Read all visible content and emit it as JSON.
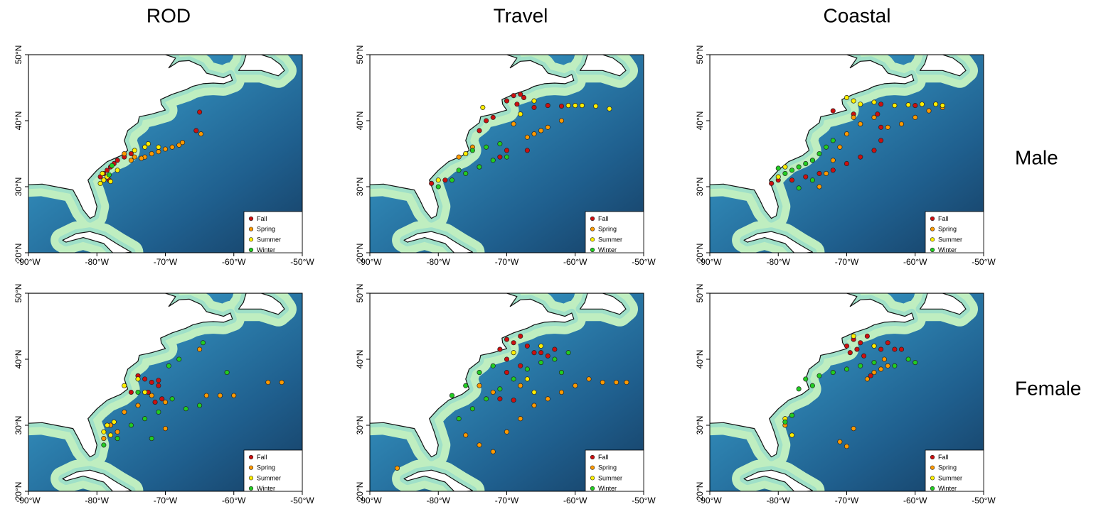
{
  "columns": [
    "ROD",
    "Travel",
    "Coastal"
  ],
  "rows": [
    "Male",
    "Female"
  ],
  "chart_data": [
    {
      "type": "scatter",
      "legend": "bottom-right",
      "xlim": [
        -90,
        -50
      ],
      "ylim": [
        20,
        50
      ],
      "xticks": [
        {
          "value": -90,
          "label": "-90°W"
        },
        {
          "value": -80,
          "label": "-80°W"
        },
        {
          "value": -70,
          "label": "-70°W"
        },
        {
          "value": -60,
          "label": "-60°W"
        },
        {
          "value": -50,
          "label": "-50°W"
        }
      ],
      "yticks": [
        {
          "value": 20,
          "label": "20°N"
        },
        {
          "value": 30,
          "label": "30°N"
        },
        {
          "value": 40,
          "label": "40°N"
        },
        {
          "value": 50,
          "label": "50°N"
        }
      ],
      "series": [
        {
          "name": "Fall",
          "color": "#cc1010",
          "x": [
            -65,
            -65.5,
            -79,
            -78.5,
            -78,
            -77.5,
            -77,
            -76,
            -75,
            -79.5,
            -78.2
          ],
          "y": [
            41.3,
            38.5,
            32,
            32.5,
            33,
            33.5,
            34,
            34.5,
            35,
            31.5,
            31
          ]
        },
        {
          "name": "Spring",
          "color": "#ff9900",
          "x": [
            -73,
            -72,
            -71,
            -70,
            -69,
            -68,
            -67.5,
            -74.5,
            -75,
            -76,
            -64.8,
            -73.5
          ],
          "y": [
            34.5,
            35,
            35.3,
            35.7,
            36,
            36.3,
            36.7,
            34.5,
            34,
            35,
            38,
            34.3
          ]
        },
        {
          "name": "Summer",
          "color": "#ffee00",
          "x": [
            -79.5,
            -79,
            -78.5,
            -78,
            -79.2,
            -73,
            -72.5,
            -71,
            -74.5,
            -77
          ],
          "y": [
            30.5,
            31,
            31.5,
            30.8,
            32,
            36,
            36.5,
            36,
            35.5,
            32.5
          ]
        },
        {
          "name": "Winter",
          "color": "#22cc22",
          "x": [
            -78.2,
            -77.8
          ],
          "y": [
            31.8,
            33.2
          ]
        }
      ]
    },
    {
      "type": "scatter",
      "legend": "bottom-right",
      "xlim": [
        -90,
        -50
      ],
      "ylim": [
        20,
        50
      ],
      "xticks": [
        {
          "value": -90,
          "label": "-90°W"
        },
        {
          "value": -80,
          "label": "-80°W"
        },
        {
          "value": -70,
          "label": "-70°W"
        },
        {
          "value": -60,
          "label": "-60°W"
        },
        {
          "value": -50,
          "label": "-50°W"
        }
      ],
      "yticks": [
        {
          "value": 20,
          "label": "20°N"
        },
        {
          "value": 30,
          "label": "30°N"
        },
        {
          "value": 40,
          "label": "40°N"
        },
        {
          "value": 50,
          "label": "50°N"
        }
      ],
      "series": [
        {
          "name": "Fall",
          "color": "#cc1010",
          "x": [
            -70,
            -69,
            -68,
            -67.5,
            -68.5,
            -66,
            -64,
            -62,
            -73,
            -72,
            -74,
            -71,
            -79,
            -81,
            -70,
            -67
          ],
          "y": [
            43,
            43.8,
            44,
            43.5,
            42.5,
            42,
            42.3,
            42.2,
            40,
            40.5,
            38.5,
            34.5,
            31,
            30.5,
            35.5,
            35.5
          ]
        },
        {
          "name": "Spring",
          "color": "#ff9900",
          "x": [
            -66,
            -64,
            -62,
            -67,
            -65,
            -69,
            -75,
            -76,
            -77,
            -74
          ],
          "y": [
            38,
            39,
            40,
            37.5,
            38.5,
            39.5,
            36,
            35,
            34.5,
            33
          ]
        },
        {
          "name": "Summer",
          "color": "#ffee00",
          "x": [
            -61,
            -59,
            -57,
            -55,
            -60,
            -66,
            -68,
            -73.5,
            -76,
            -80
          ],
          "y": [
            42.3,
            42.3,
            42.2,
            41.8,
            42.3,
            43,
            41,
            42,
            35,
            31
          ]
        },
        {
          "name": "Winter",
          "color": "#22cc22",
          "x": [
            -80,
            -78,
            -76,
            -74,
            -72,
            -70,
            -73,
            -71,
            -77,
            -75
          ],
          "y": [
            30,
            31,
            32,
            33,
            34,
            34.5,
            36,
            36.5,
            32.5,
            35.5
          ]
        }
      ]
    },
    {
      "type": "scatter",
      "legend": "bottom-right",
      "xlim": [
        -90,
        -50
      ],
      "ylim": [
        20,
        50
      ],
      "xticks": [
        {
          "value": -90,
          "label": "-90°W"
        },
        {
          "value": -80,
          "label": "-80°W"
        },
        {
          "value": -70,
          "label": "-70°W"
        },
        {
          "value": -60,
          "label": "-60°W"
        },
        {
          "value": -50,
          "label": "-50°W"
        }
      ],
      "yticks": [
        {
          "value": 20,
          "label": "20°N"
        },
        {
          "value": 30,
          "label": "30°N"
        },
        {
          "value": 40,
          "label": "40°N"
        },
        {
          "value": 50,
          "label": "50°N"
        }
      ],
      "series": [
        {
          "name": "Fall",
          "color": "#cc1010",
          "x": [
            -80,
            -81,
            -78,
            -76,
            -74,
            -72,
            -70,
            -68,
            -66,
            -65,
            -65,
            -65.5,
            -69,
            -72,
            -65,
            -60,
            -57
          ],
          "y": [
            31,
            30.5,
            31,
            31.5,
            32,
            32.5,
            33.5,
            34.5,
            35.5,
            37,
            39,
            41,
            41,
            41.5,
            42.5,
            42.3,
            42.5
          ]
        },
        {
          "name": "Spring",
          "color": "#ff9900",
          "x": [
            -74,
            -73,
            -72,
            -71,
            -70,
            -68,
            -66,
            -64,
            -62,
            -60,
            -58,
            -56,
            -69,
            -75
          ],
          "y": [
            30,
            32,
            34,
            36,
            38,
            39.5,
            40.5,
            39,
            39.5,
            40.5,
            41.5,
            42,
            40.5,
            34
          ]
        },
        {
          "name": "Summer",
          "color": "#ffee00",
          "x": [
            -70,
            -69,
            -68,
            -66,
            -63,
            -61,
            -59,
            -57,
            -56,
            -80,
            -79
          ],
          "y": [
            43.5,
            43,
            42.5,
            42.8,
            42.3,
            42.4,
            42.5,
            42.5,
            42.3,
            31.5,
            33
          ]
        },
        {
          "name": "Winter",
          "color": "#22cc22",
          "x": [
            -79,
            -78,
            -77,
            -76,
            -75,
            -74,
            -73,
            -72,
            -80,
            -77,
            -75
          ],
          "y": [
            32,
            32.5,
            33,
            33.5,
            34,
            35,
            36,
            37,
            32.8,
            29.8,
            31
          ]
        }
      ]
    },
    {
      "type": "scatter",
      "legend": "bottom-right",
      "xlim": [
        -90,
        -50
      ],
      "ylim": [
        20,
        50
      ],
      "xticks": [
        {
          "value": -90,
          "label": "-90°W"
        },
        {
          "value": -80,
          "label": "-80°W"
        },
        {
          "value": -70,
          "label": "-70°W"
        },
        {
          "value": -60,
          "label": "-60°W"
        },
        {
          "value": -50,
          "label": "-50°W"
        }
      ],
      "yticks": [
        {
          "value": 20,
          "label": "20°N"
        },
        {
          "value": 30,
          "label": "30°N"
        },
        {
          "value": 40,
          "label": "40°N"
        },
        {
          "value": 50,
          "label": "50°N"
        }
      ],
      "series": [
        {
          "name": "Fall",
          "color": "#cc1010",
          "x": [
            -71.5,
            -70.5,
            -71,
            -72,
            -73,
            -74,
            -72.5,
            -75,
            -71
          ],
          "y": [
            33.5,
            34,
            36,
            36.5,
            37,
            37.5,
            35,
            35,
            36.8
          ]
        },
        {
          "name": "Spring",
          "color": "#ff9900",
          "x": [
            -78,
            -77,
            -79,
            -76,
            -74,
            -72,
            -70,
            -70,
            -65,
            -62,
            -60,
            -55,
            -53,
            -64
          ],
          "y": [
            30,
            29,
            28,
            32,
            33,
            34.5,
            33.5,
            29.5,
            41.5,
            34.5,
            34.5,
            36.5,
            36.5,
            34.5
          ]
        },
        {
          "name": "Summer",
          "color": "#ffee00",
          "x": [
            -79,
            -78.5,
            -77.5,
            -74,
            -73,
            -76,
            -78
          ],
          "y": [
            29,
            30,
            30.5,
            37,
            35,
            36,
            28.5
          ]
        },
        {
          "name": "Winter",
          "color": "#22cc22",
          "x": [
            -79,
            -77,
            -75,
            -73,
            -71,
            -69,
            -67,
            -65,
            -64.5,
            -61,
            -69.5,
            -72,
            -68,
            -74
          ],
          "y": [
            27,
            28,
            30,
            31,
            32,
            34,
            32.5,
            33,
            42.5,
            38,
            39,
            28,
            40,
            35
          ]
        }
      ]
    },
    {
      "type": "scatter",
      "legend": "bottom-right",
      "xlim": [
        -90,
        -50
      ],
      "ylim": [
        20,
        50
      ],
      "xticks": [
        {
          "value": -90,
          "label": "-90°W"
        },
        {
          "value": -80,
          "label": "-80°W"
        },
        {
          "value": -70,
          "label": "-70°W"
        },
        {
          "value": -60,
          "label": "-60°W"
        },
        {
          "value": -50,
          "label": "-50°W"
        }
      ],
      "yticks": [
        {
          "value": 20,
          "label": "20°N"
        },
        {
          "value": 30,
          "label": "30°N"
        },
        {
          "value": 40,
          "label": "40°N"
        },
        {
          "value": 50,
          "label": "50°N"
        }
      ],
      "series": [
        {
          "name": "Fall",
          "color": "#cc1010",
          "x": [
            -70,
            -69,
            -68,
            -67,
            -66,
            -71,
            -70,
            -68,
            -65,
            -64,
            -63,
            -70,
            -71,
            -69
          ],
          "y": [
            43,
            42.5,
            43.5,
            42,
            41,
            41.5,
            40,
            39,
            41,
            40.5,
            41.5,
            38,
            34,
            33.8
          ]
        },
        {
          "name": "Spring",
          "color": "#ff9900",
          "x": [
            -76,
            -74,
            -72,
            -70,
            -68,
            -66,
            -64,
            -62,
            -60,
            -58,
            -56,
            -54,
            -52.5,
            -74,
            -72,
            -68,
            -86
          ],
          "y": [
            28.5,
            27,
            26,
            29,
            31,
            33,
            34,
            35,
            36,
            37,
            36.5,
            36.5,
            36.5,
            36,
            35,
            36,
            23.5
          ]
        },
        {
          "name": "Summer",
          "color": "#ffee00",
          "x": [
            -69,
            -67,
            -66,
            -65
          ],
          "y": [
            41,
            37,
            35,
            42
          ]
        },
        {
          "name": "Winter",
          "color": "#22cc22",
          "x": [
            -77,
            -75,
            -73,
            -71,
            -69,
            -67,
            -65,
            -63,
            -61,
            -76,
            -78,
            -62,
            -72,
            -74
          ],
          "y": [
            31,
            32.5,
            34,
            35.5,
            37,
            38.5,
            39.5,
            40,
            41,
            36,
            34.5,
            38,
            39,
            38
          ]
        }
      ]
    },
    {
      "type": "scatter",
      "legend": "bottom-right",
      "xlim": [
        -90,
        -50
      ],
      "ylim": [
        20,
        50
      ],
      "xticks": [
        {
          "value": -90,
          "label": "-90°W"
        },
        {
          "value": -80,
          "label": "-80°W"
        },
        {
          "value": -70,
          "label": "-70°W"
        },
        {
          "value": -60,
          "label": "-60°W"
        },
        {
          "value": -50,
          "label": "-50°W"
        }
      ],
      "yticks": [
        {
          "value": 20,
          "label": "20°N"
        },
        {
          "value": 30,
          "label": "30°N"
        },
        {
          "value": 40,
          "label": "40°N"
        },
        {
          "value": 50,
          "label": "50°N"
        }
      ],
      "series": [
        {
          "name": "Fall",
          "color": "#cc1010",
          "x": [
            -70,
            -69,
            -68,
            -67,
            -66,
            -65,
            -64,
            -63,
            -69.5,
            -68.5,
            -67.5,
            -62,
            -66.5
          ],
          "y": [
            42,
            43,
            42.5,
            43.5,
            42,
            41.5,
            42.5,
            41.5,
            41,
            41.5,
            40.5,
            41.5,
            37.5
          ]
        },
        {
          "name": "Spring",
          "color": "#ff9900",
          "x": [
            -64,
            -65,
            -66,
            -67,
            -70,
            -71,
            -78,
            -79,
            -69,
            -64.5
          ],
          "y": [
            39,
            38.5,
            38,
            37,
            26.8,
            27.5,
            31.5,
            30,
            29.5,
            40
          ]
        },
        {
          "name": "Summer",
          "color": "#ffee00",
          "x": [
            -78,
            -79,
            -69,
            -66
          ],
          "y": [
            28.5,
            31,
            43.5,
            42
          ]
        },
        {
          "name": "Winter",
          "color": "#22cc22",
          "x": [
            -76,
            -74,
            -72,
            -70,
            -68,
            -66,
            -63,
            -61,
            -60,
            -75,
            -77,
            -79,
            -78
          ],
          "y": [
            37,
            37.5,
            38,
            38.5,
            39,
            39.5,
            39,
            40,
            39.5,
            36,
            35.5,
            30.5,
            31.5
          ]
        }
      ]
    }
  ]
}
